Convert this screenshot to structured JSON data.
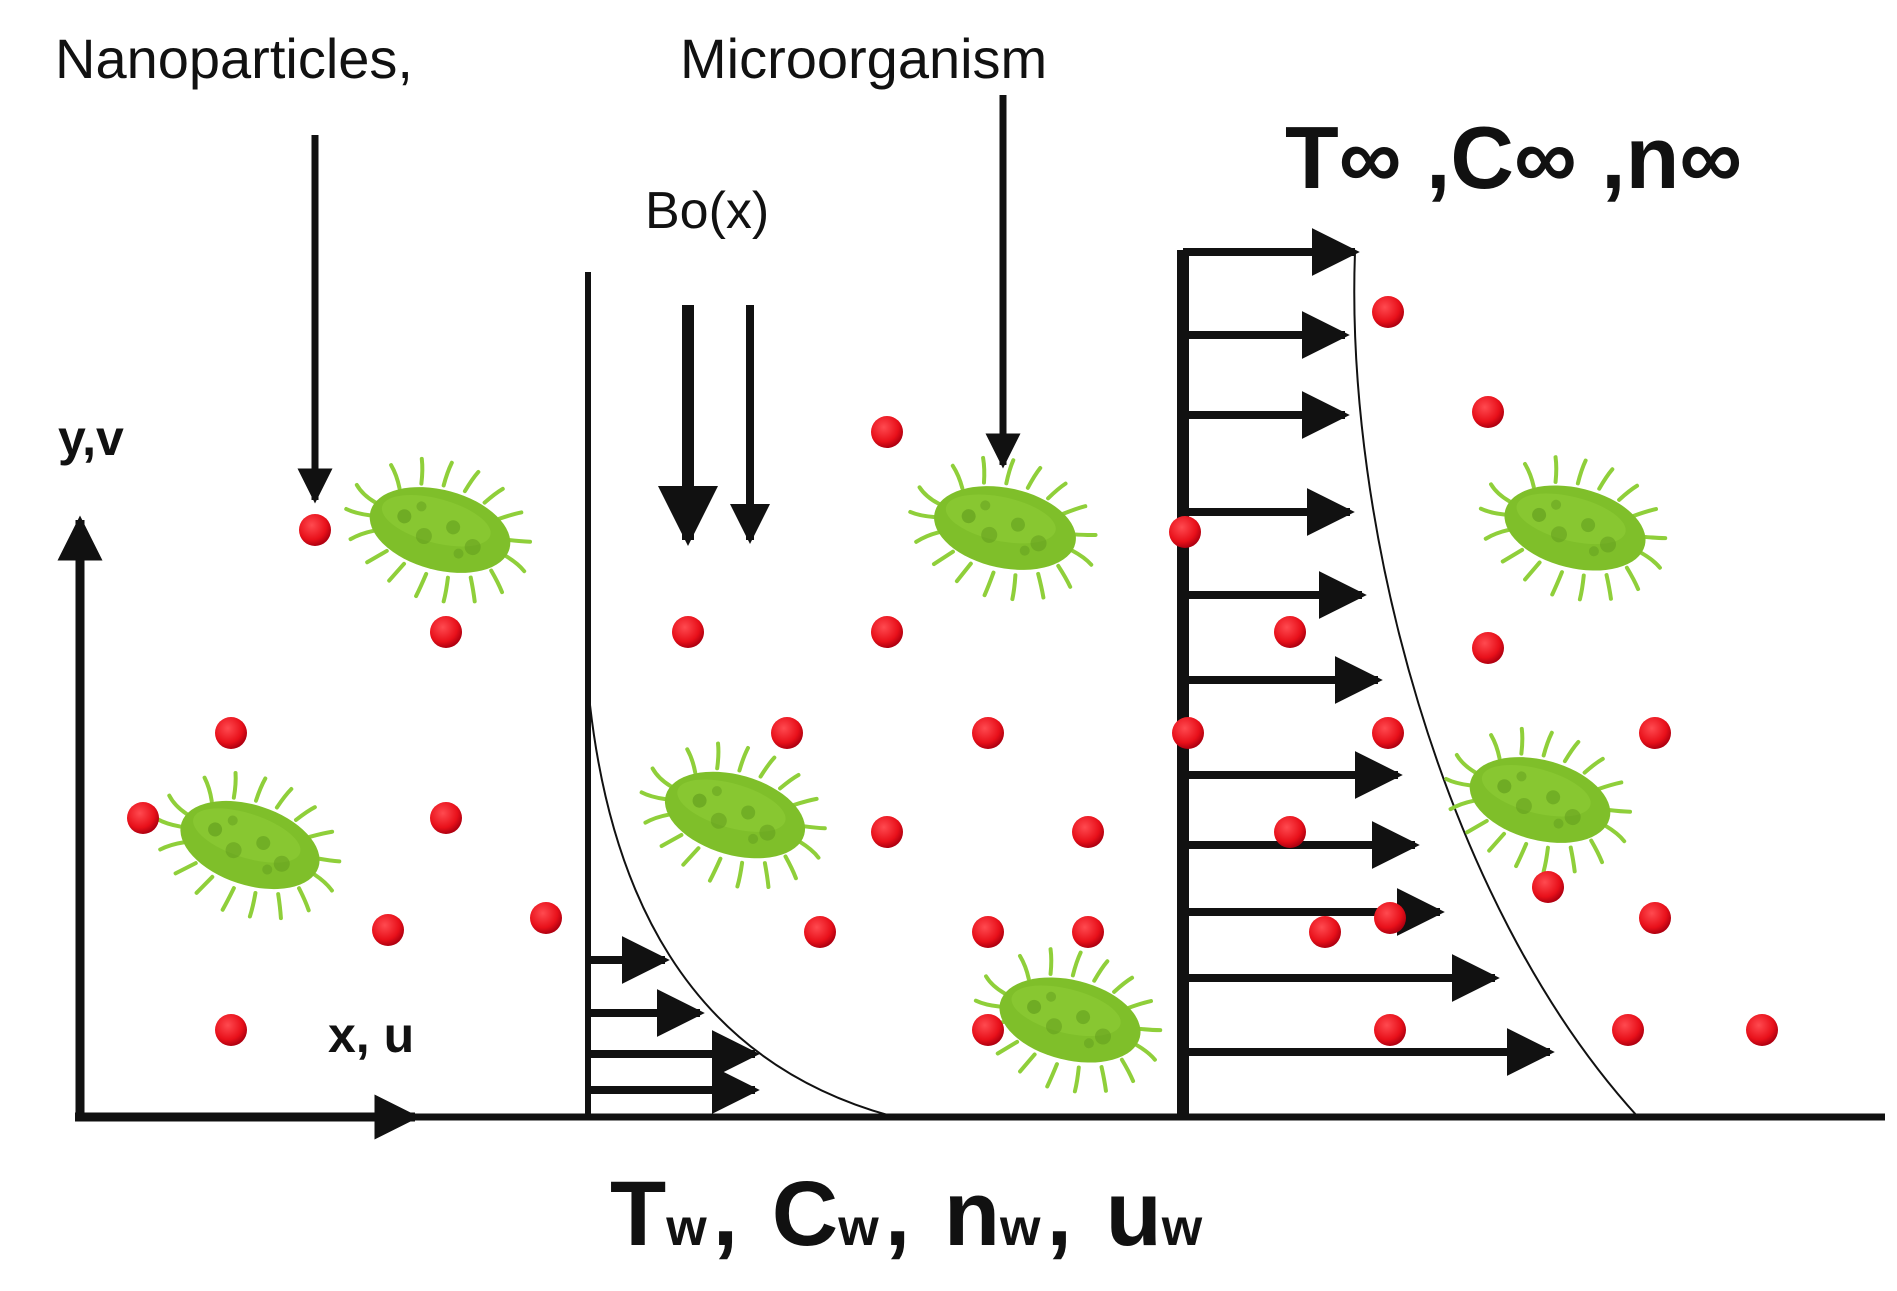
{
  "labels": {
    "nanoparticles": "Nanoparticles,",
    "microorganism": "Microorganism",
    "ambient": "T∞ ,C∞ ,n∞",
    "magnetic_field": "Bo(x)",
    "y_axis": "y,v",
    "x_axis": "x, u",
    "wall_T": "T",
    "wall_T_sub": "w",
    "wall_C": "C",
    "wall_C_sub": "w",
    "wall_n": "n",
    "wall_n_sub": "w",
    "wall_u": "u",
    "wall_u_sub": "w",
    "sep": ","
  },
  "colors": {
    "ink": "#111111",
    "particle": "#e8101a",
    "particle_edge": "#b00010",
    "microbe_body": "#7fbf2a",
    "microbe_spot": "#5f9a1c",
    "microbe_cilia": "#8fcf3a"
  },
  "icons": {
    "particle": "red-circle",
    "microorganism": "green-bacterium"
  }
}
